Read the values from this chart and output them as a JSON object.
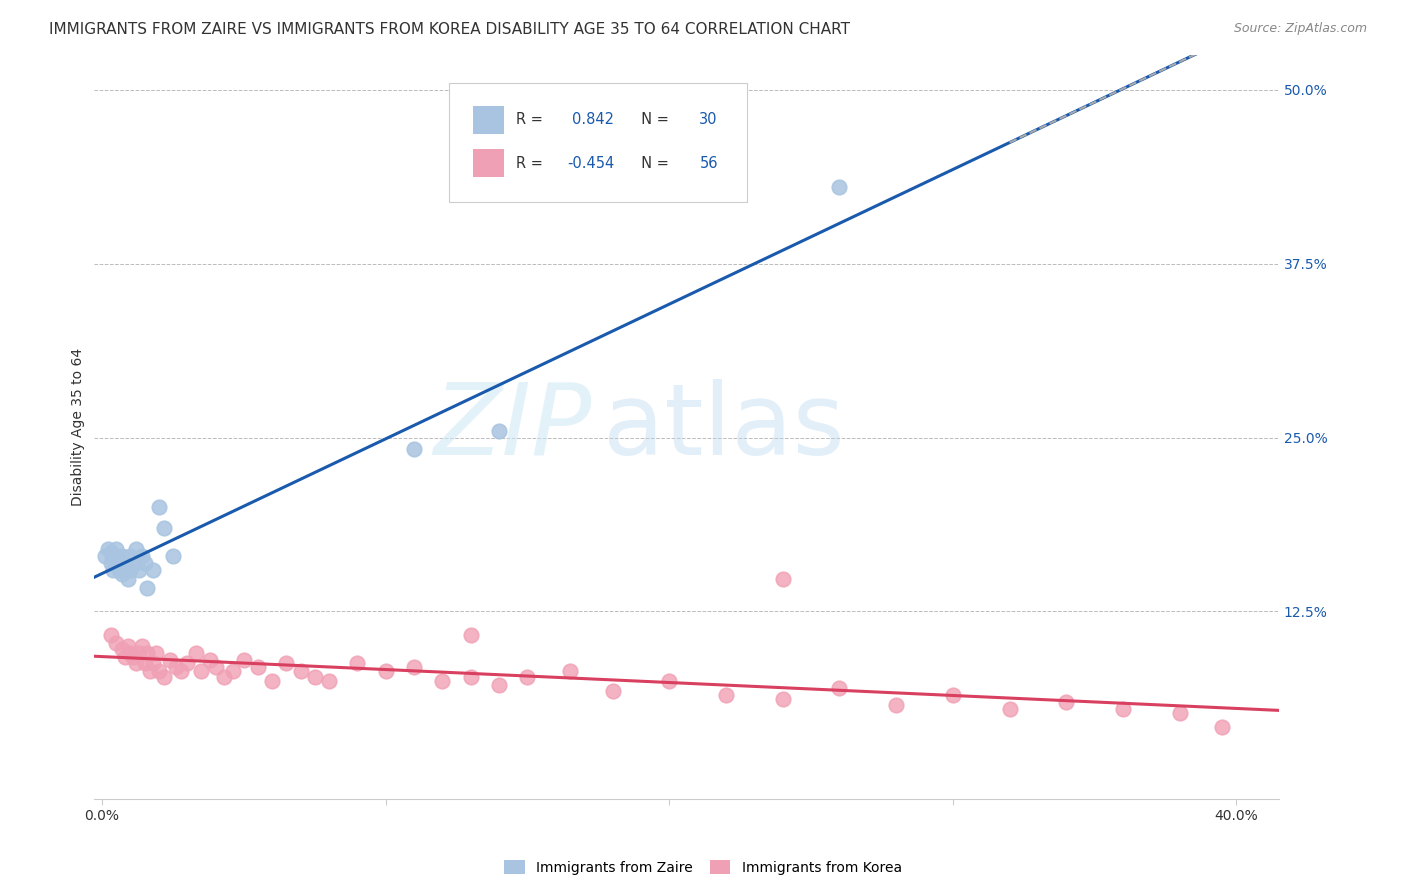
{
  "title": "IMMIGRANTS FROM ZAIRE VS IMMIGRANTS FROM KOREA DISABILITY AGE 35 TO 64 CORRELATION CHART",
  "source": "Source: ZipAtlas.com",
  "ylabel": "Disability Age 35 to 64",
  "xlim": [
    -0.003,
    0.415
  ],
  "ylim": [
    -0.01,
    0.525
  ],
  "xticks": [
    0.0,
    0.1,
    0.2,
    0.3,
    0.4
  ],
  "xtick_labels": [
    "0.0%",
    "",
    "",
    "",
    "40.0%"
  ],
  "yticks_right": [
    0.125,
    0.25,
    0.375,
    0.5
  ],
  "ytick_labels_right": [
    "12.5%",
    "25.0%",
    "37.5%",
    "50.0%"
  ],
  "hlines": [
    0.125,
    0.25,
    0.375,
    0.5
  ],
  "legend_labels": [
    "Immigrants from Zaire",
    "Immigrants from Korea"
  ],
  "legend_r_zaire": "0.842",
  "legend_n_zaire": "30",
  "legend_r_korea": "-0.454",
  "legend_n_korea": "56",
  "zaire_color": "#a8c4e0",
  "korea_color": "#f0a0b4",
  "zaire_line_color": "#1a5aad",
  "korea_line_color": "#d94060",
  "background_color": "#ffffff",
  "watermark_zip": "ZIP",
  "watermark_atlas": "atlas",
  "title_fontsize": 11,
  "source_fontsize": 9,
  "zaire_x": [
    0.001,
    0.002,
    0.003,
    0.003,
    0.004,
    0.004,
    0.005,
    0.005,
    0.005,
    0.006,
    0.006,
    0.007,
    0.007,
    0.008,
    0.009,
    0.01,
    0.01,
    0.011,
    0.012,
    0.013,
    0.014,
    0.015,
    0.016,
    0.018,
    0.02,
    0.022,
    0.025,
    0.11,
    0.14,
    0.26
  ],
  "zaire_y": [
    0.165,
    0.17,
    0.16,
    0.168,
    0.155,
    0.165,
    0.158,
    0.162,
    0.17,
    0.155,
    0.16,
    0.152,
    0.165,
    0.158,
    0.148,
    0.155,
    0.165,
    0.158,
    0.17,
    0.155,
    0.165,
    0.16,
    0.142,
    0.155,
    0.2,
    0.185,
    0.165,
    0.242,
    0.255,
    0.43
  ],
  "korea_x": [
    0.003,
    0.005,
    0.007,
    0.008,
    0.009,
    0.01,
    0.011,
    0.012,
    0.013,
    0.014,
    0.015,
    0.016,
    0.017,
    0.018,
    0.019,
    0.02,
    0.022,
    0.024,
    0.026,
    0.028,
    0.03,
    0.033,
    0.035,
    0.038,
    0.04,
    0.043,
    0.046,
    0.05,
    0.055,
    0.06,
    0.065,
    0.07,
    0.075,
    0.08,
    0.09,
    0.1,
    0.11,
    0.12,
    0.13,
    0.14,
    0.15,
    0.165,
    0.18,
    0.2,
    0.22,
    0.24,
    0.26,
    0.28,
    0.3,
    0.32,
    0.34,
    0.36,
    0.38,
    0.395,
    0.24,
    0.13
  ],
  "korea_y": [
    0.108,
    0.102,
    0.098,
    0.092,
    0.1,
    0.095,
    0.092,
    0.088,
    0.095,
    0.1,
    0.088,
    0.095,
    0.082,
    0.088,
    0.095,
    0.082,
    0.078,
    0.09,
    0.085,
    0.082,
    0.088,
    0.095,
    0.082,
    0.09,
    0.085,
    0.078,
    0.082,
    0.09,
    0.085,
    0.075,
    0.088,
    0.082,
    0.078,
    0.075,
    0.088,
    0.082,
    0.085,
    0.075,
    0.078,
    0.072,
    0.078,
    0.082,
    0.068,
    0.075,
    0.065,
    0.062,
    0.07,
    0.058,
    0.065,
    0.055,
    0.06,
    0.055,
    0.052,
    0.042,
    0.148,
    0.108
  ]
}
